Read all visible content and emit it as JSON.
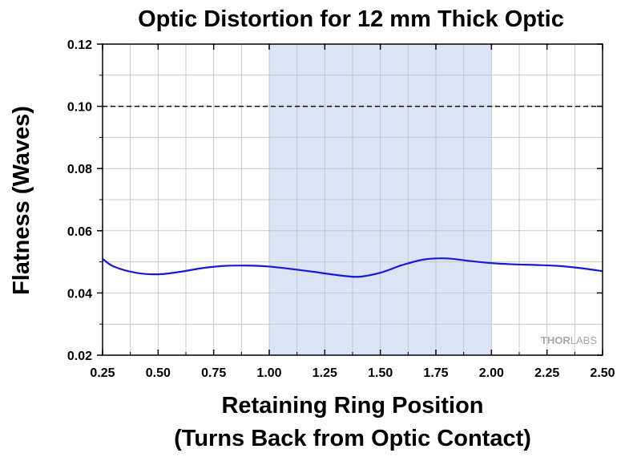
{
  "chart_data": {
    "type": "line",
    "title": "Optic Distortion for 12 mm Thick Optic",
    "xlabel_line1": "Retaining Ring Position",
    "xlabel_line2": "(Turns Back from Optic Contact)",
    "ylabel": "Flatness (Waves)",
    "xlim": [
      0.25,
      2.5
    ],
    "ylim": [
      0.02,
      0.12
    ],
    "x_ticks": [
      "0.25",
      "0.50",
      "0.75",
      "1.00",
      "1.25",
      "1.50",
      "1.75",
      "2.00",
      "2.25",
      "2.50"
    ],
    "y_ticks": [
      "0.02",
      "0.04",
      "0.06",
      "0.08",
      "0.10",
      "0.12"
    ],
    "grid": true,
    "highlight_region": [
      1.0,
      2.0
    ],
    "reference_line": 0.1,
    "series": [
      {
        "x": [
          0.25,
          0.3,
          0.4,
          0.5,
          0.6,
          0.7,
          0.8,
          0.9,
          1.0,
          1.1,
          1.2,
          1.3,
          1.4,
          1.5,
          1.6,
          1.7,
          1.8,
          1.9,
          2.0,
          2.1,
          2.2,
          2.3,
          2.4,
          2.5
        ],
        "values": [
          0.051,
          0.0485,
          0.0465,
          0.046,
          0.0468,
          0.048,
          0.0487,
          0.0488,
          0.0485,
          0.0477,
          0.0468,
          0.0458,
          0.0452,
          0.0465,
          0.049,
          0.0508,
          0.0511,
          0.0503,
          0.0496,
          0.0492,
          0.049,
          0.0487,
          0.048,
          0.047
        ]
      }
    ]
  },
  "colors": {
    "line": "#1818d8",
    "highlight": "#dbe3f6",
    "grid": "#c8c8c8",
    "reference": "#000000"
  },
  "watermark": {
    "thor": "THOR",
    "labs": "LABS"
  }
}
